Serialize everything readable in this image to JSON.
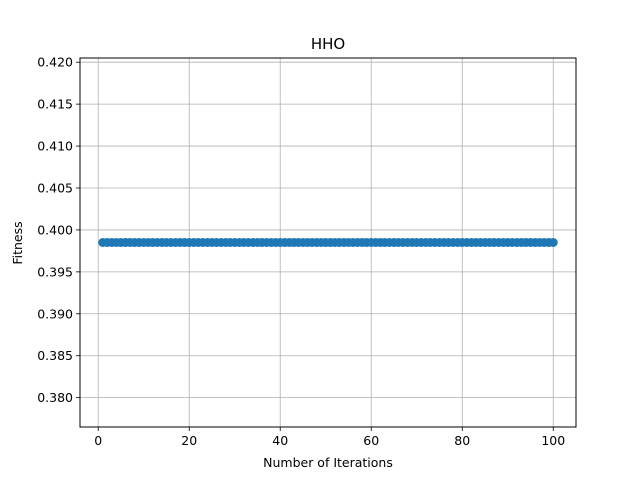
{
  "chart_data": {
    "type": "line",
    "title": "HHO",
    "xlabel": "Number of Iterations",
    "ylabel": "Fitness",
    "xlim": [
      -4.0,
      105.0
    ],
    "ylim": [
      0.3765,
      0.4205
    ],
    "xticks": [
      0,
      20,
      40,
      60,
      80,
      100
    ],
    "xtick_labels": [
      "0",
      "20",
      "40",
      "60",
      "80",
      "100"
    ],
    "yticks": [
      0.38,
      0.385,
      0.39,
      0.395,
      0.4,
      0.405,
      0.41,
      0.415,
      0.42
    ],
    "ytick_labels": [
      "0.380",
      "0.385",
      "0.390",
      "0.395",
      "0.400",
      "0.405",
      "0.410",
      "0.415",
      "0.420"
    ],
    "grid": true,
    "marker": "circle",
    "series": [
      {
        "x_start": 1,
        "x_end": 100,
        "x_step": 1,
        "y_constant": 0.3985,
        "color": "#1f77b4"
      }
    ]
  }
}
